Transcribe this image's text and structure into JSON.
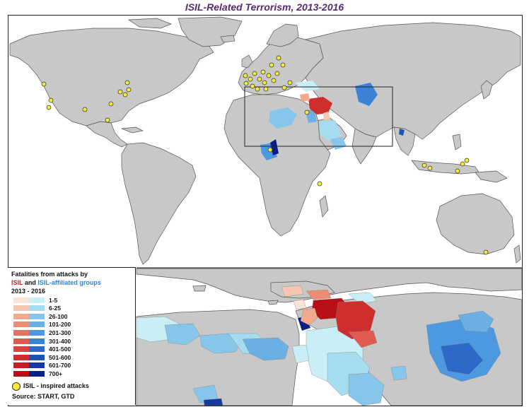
{
  "title": "ISIL-Related Terrorism, 2013-2016",
  "legend": {
    "heading_line1": "Fatalities from attacks by",
    "isil_word": "ISIL",
    "and_word": " and ",
    "affiliated_word": "ISIL-affiliated groups",
    "years": "2013 - 2016",
    "classes": [
      {
        "label": "1-5",
        "isil_color": "#fbe4d6",
        "affiliated_color": "#c9eef6"
      },
      {
        "label": "6-25",
        "isil_color": "#f6c7b0",
        "affiliated_color": "#a6dcef"
      },
      {
        "label": "26-100",
        "isil_color": "#f2a98c",
        "affiliated_color": "#86c6ea"
      },
      {
        "label": "101-200",
        "isil_color": "#ec8c72",
        "affiliated_color": "#6ab0e4"
      },
      {
        "label": "201-300",
        "isil_color": "#e67260",
        "affiliated_color": "#4d99df"
      },
      {
        "label": "301-400",
        "isil_color": "#e05a4f",
        "affiliated_color": "#3a82d6"
      },
      {
        "label": "401-500",
        "isil_color": "#d9443e",
        "affiliated_color": "#2d69c8"
      },
      {
        "label": "501-600",
        "isil_color": "#cf2e2e",
        "affiliated_color": "#2250b5"
      },
      {
        "label": "601-700",
        "isil_color": "#c51e22",
        "affiliated_color": "#17389e"
      },
      {
        "label": "700+",
        "isil_color": "#b80f17",
        "affiliated_color": "#0b2084"
      }
    ],
    "inspired_label": "ISIL - inspired attacks",
    "source": "Source: START, GTD"
  },
  "colors": {
    "land": "#c8c8c8",
    "border": "#555555",
    "water": "#ffffff",
    "inspired_dot": "#f5ec3a"
  }
}
